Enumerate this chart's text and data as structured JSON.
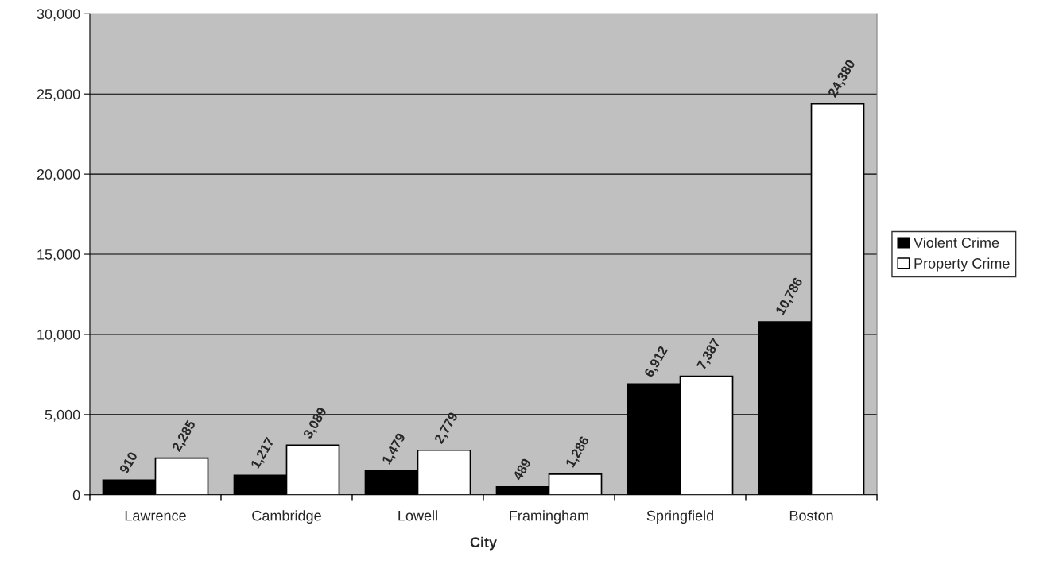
{
  "chart_data": {
    "type": "bar",
    "xlabel": "City",
    "categories": [
      "Lawrence",
      "Cambridge",
      "Lowell",
      "Framingham",
      "Springfield",
      "Boston"
    ],
    "series": [
      {
        "name": "Violent Crime",
        "color": "#000000",
        "values": [
          910,
          1217,
          1479,
          489,
          6912,
          10786
        ],
        "value_labels": [
          "910",
          "1,217",
          "1,479",
          "489",
          "6,912",
          "10,786"
        ]
      },
      {
        "name": "Property Crime",
        "color": "#ffffff",
        "values": [
          2285,
          3089,
          2779,
          1286,
          7387,
          24380
        ],
        "value_labels": [
          "2,285",
          "3,089",
          "2,779",
          "1,286",
          "7,387",
          "24,380"
        ]
      }
    ],
    "ylim": [
      0,
      30000
    ],
    "yticks": [
      {
        "value": 0,
        "label": "0"
      },
      {
        "value": 5000,
        "label": "5,000"
      },
      {
        "value": 10000,
        "label": "10,000"
      },
      {
        "value": 15000,
        "label": "15,000"
      },
      {
        "value": 20000,
        "label": "20,000"
      },
      {
        "value": 25000,
        "label": "25,000"
      },
      {
        "value": 30000,
        "label": "30,000"
      }
    ],
    "grid": "y",
    "legend": "right"
  }
}
